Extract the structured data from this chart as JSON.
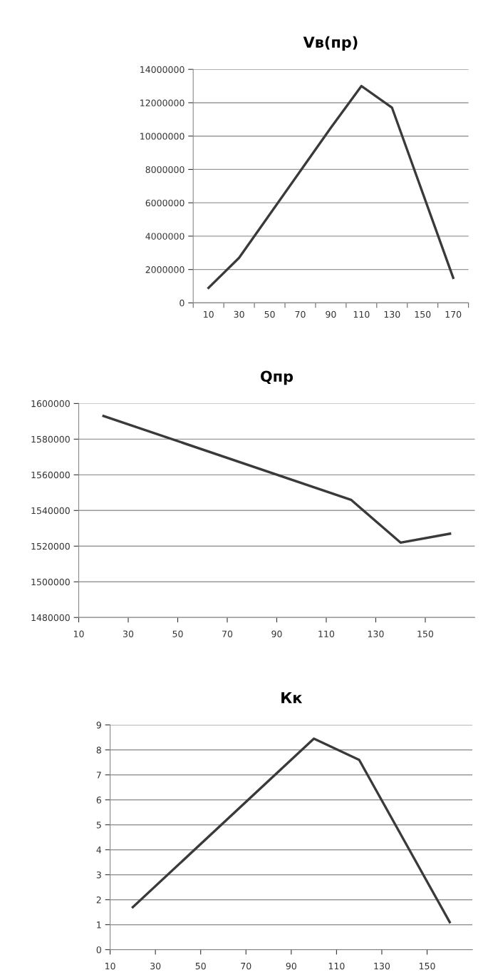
{
  "chart_data": [
    {
      "type": "line",
      "title": "Vв(пр)",
      "categories": [
        "10",
        "30",
        "50",
        "70",
        "90",
        "110",
        "130",
        "150",
        "170"
      ],
      "series": [
        {
          "color": "#3a3a3a",
          "values": [
            900000,
            2700000,
            5300000,
            7900000,
            10500000,
            13000000,
            11700000,
            6600000,
            1500000
          ]
        }
      ],
      "ylim": [
        0,
        14000000
      ],
      "yticks": [
        0,
        2000000,
        4000000,
        6000000,
        8000000,
        10000000,
        12000000,
        14000000
      ],
      "grid": "y"
    },
    {
      "type": "line",
      "title": "Qпр",
      "x": [
        20,
        120,
        140,
        160
      ],
      "series": [
        {
          "color": "#3a3a3a",
          "values": [
            1593000,
            1546000,
            1522000,
            1527000
          ]
        }
      ],
      "xlim": [
        10,
        170
      ],
      "xticks": [
        10,
        30,
        50,
        70,
        90,
        110,
        130,
        150
      ],
      "ylim": [
        1480000,
        1600000
      ],
      "yticks": [
        1480000,
        1500000,
        1520000,
        1540000,
        1560000,
        1580000,
        1600000
      ],
      "grid": "y"
    },
    {
      "type": "line",
      "title": "Кк",
      "x": [
        20,
        100,
        120,
        160
      ],
      "series": [
        {
          "color": "#3a3a3a",
          "values": [
            1.7,
            8.45,
            7.6,
            1.1
          ]
        }
      ],
      "xlim": [
        10,
        170
      ],
      "xticks": [
        10,
        30,
        50,
        70,
        90,
        110,
        130,
        150
      ],
      "ylim": [
        0,
        9
      ],
      "yticks": [
        0,
        1,
        2,
        3,
        4,
        5,
        6,
        7,
        8,
        9
      ],
      "grid": "y"
    }
  ]
}
